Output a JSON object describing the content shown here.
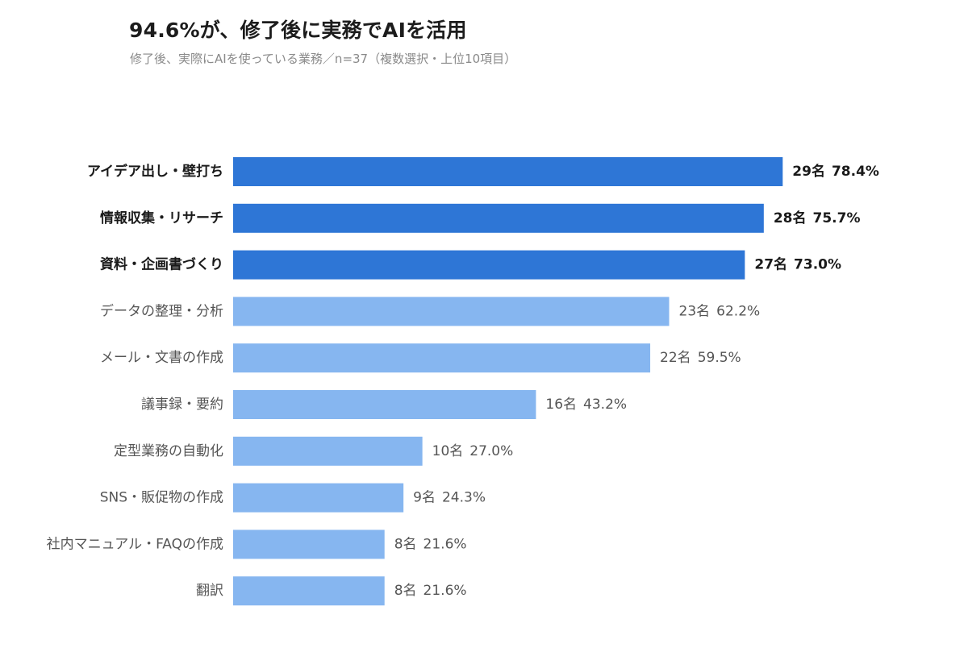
{
  "title": "94.6%が、修了後に実務でAIを活用",
  "subtitle": "修了後、実際にAIを使っている業務／n=37（複数選択・上位10項目）",
  "colors": {
    "highlight_bar": "#2e76d6",
    "normal_bar": "#86b6f0",
    "highlight_text": "#1a1a1a",
    "normal_text": "#555555"
  },
  "chart_data": {
    "type": "bar",
    "orientation": "horizontal",
    "title": "94.6%が、修了後に実務でAIを活用",
    "subtitle": "修了後、実際にAIを使っている業務／n=37（複数選択・上位10項目）",
    "categories": [
      "アイデア出し・壁打ち",
      "情報収集・リサーチ",
      "資料・企画書づくり",
      "データの整理・分析",
      "メール・文書の作成",
      "議事録・要約",
      "定型業務の自動化",
      "SNS・販促物の作成",
      "社内マニュアル・FAQの作成",
      "翻訳"
    ],
    "counts": [
      29,
      28,
      27,
      23,
      22,
      16,
      10,
      9,
      8,
      8
    ],
    "percent_labels": [
      "78.4%",
      "75.7%",
      "73.0%",
      "62.2%",
      "59.5%",
      "43.2%",
      "27.0%",
      "24.3%",
      "21.6%",
      "21.6%"
    ],
    "count_labels": [
      "29名",
      "28名",
      "27名",
      "23名",
      "22名",
      "16名",
      "10名",
      "9名",
      "8名",
      "8名"
    ],
    "values": [
      78.4,
      75.7,
      73.0,
      62.2,
      59.5,
      43.2,
      27.0,
      24.3,
      21.6,
      21.6
    ],
    "highlighted": [
      true,
      true,
      true,
      false,
      false,
      false,
      false,
      false,
      false,
      false
    ],
    "xlim": [
      0,
      100
    ],
    "grid": false,
    "legend": false
  }
}
